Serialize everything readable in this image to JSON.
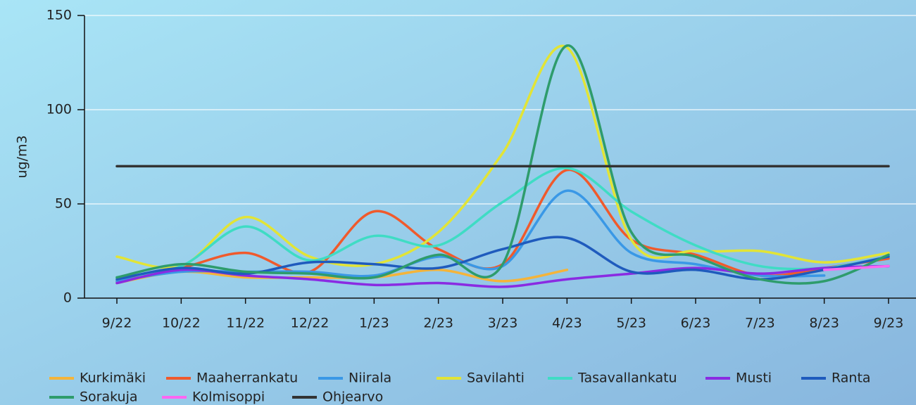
{
  "chart_data": {
    "type": "line",
    "y_label": "ug/m3",
    "categories": [
      "9/22",
      "10/22",
      "11/22",
      "12/22",
      "1/23",
      "2/23",
      "3/23",
      "4/23",
      "5/23",
      "6/23",
      "7/23",
      "8/23",
      "9/23"
    ],
    "series": [
      {
        "name": "Kurkimäki",
        "color": "#f4b43a",
        "values": [
          8,
          14,
          11,
          11,
          11,
          15,
          9,
          15,
          null,
          null,
          null,
          null,
          null
        ]
      },
      {
        "name": "Maaherrankatu",
        "color": "#f05a2c",
        "values": [
          9,
          16,
          24,
          14,
          46,
          26,
          18,
          68,
          31,
          23,
          12,
          16,
          21
        ]
      },
      {
        "name": "Niirala",
        "color": "#3a98e6",
        "values": [
          9,
          14,
          14,
          14,
          12,
          22,
          17,
          57,
          24,
          18,
          12,
          12,
          null
        ]
      },
      {
        "name": "Savilahti",
        "color": "#e2e436",
        "values": [
          22,
          17,
          43,
          22,
          18,
          35,
          77,
          133,
          31,
          25,
          25,
          19,
          24
        ]
      },
      {
        "name": "Tasavallankatu",
        "color": "#3fdcc4",
        "values": [
          11,
          17,
          38,
          20,
          33,
          28,
          51,
          69,
          46,
          28,
          17,
          16,
          22
        ]
      },
      {
        "name": "Musti",
        "color": "#8a2be2",
        "values": [
          8,
          15,
          12,
          10,
          7,
          8,
          6,
          10,
          13,
          16,
          13,
          16,
          17
        ]
      },
      {
        "name": "Ranta",
        "color": "#1f5bbd",
        "values": [
          10,
          16,
          13,
          19,
          18,
          16,
          26,
          32,
          14,
          15,
          10,
          15,
          22
        ]
      },
      {
        "name": "Sorakuja",
        "color": "#2e9c6c",
        "values": [
          11,
          18,
          14,
          13,
          11,
          23,
          18,
          134,
          35,
          22,
          10,
          9,
          23
        ]
      },
      {
        "name": "Kolmisoppi",
        "color": "#ff66f2",
        "values": [
          null,
          null,
          null,
          null,
          null,
          null,
          null,
          null,
          null,
          null,
          null,
          15,
          17
        ]
      },
      {
        "name": "Ohjearvo",
        "color": "#333333",
        "values": [
          70,
          70,
          70,
          70,
          70,
          70,
          70,
          70,
          70,
          70,
          70,
          70,
          70
        ]
      }
    ],
    "ylim": [
      0,
      150
    ],
    "yticks": [
      0,
      50,
      100,
      150
    ],
    "grid": true,
    "legend": "bottom"
  }
}
